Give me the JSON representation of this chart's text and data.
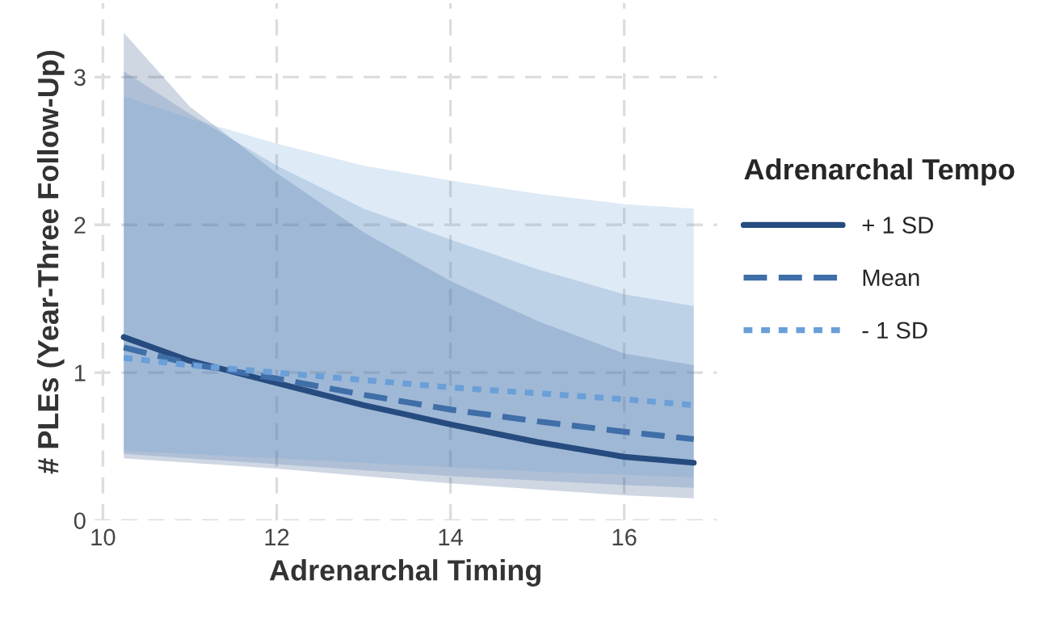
{
  "chart_data": {
    "type": "line",
    "xlabel": "Adrenarchal Timing",
    "ylabel": "# PLEs (Year-Three Follow-Up)",
    "legend_title": "Adrenarchal Tempo",
    "xlim": [
      9.9,
      17.07
    ],
    "ylim": [
      0,
      3.5
    ],
    "xticks": [
      10,
      12,
      14,
      16
    ],
    "yticks": [
      0,
      1,
      2,
      3
    ],
    "grid": true,
    "legend": "right",
    "marker": "none",
    "x": [
      10.24,
      11,
      12,
      13,
      14,
      15,
      16,
      16.8
    ],
    "series": [
      {
        "name": "+ 1 SD",
        "color": "#264b7e",
        "line_style": "solid",
        "values": [
          1.24,
          1.08,
          0.93,
          0.78,
          0.65,
          0.53,
          0.43,
          0.39
        ],
        "lower": [
          0.42,
          0.39,
          0.35,
          0.3,
          0.25,
          0.21,
          0.17,
          0.15
        ],
        "upper": [
          3.3,
          2.8,
          2.35,
          1.95,
          1.62,
          1.35,
          1.13,
          1.05
        ]
      },
      {
        "name": "Mean",
        "color": "#3f6ea8",
        "line_style": "dashed",
        "values": [
          1.17,
          1.06,
          0.96,
          0.85,
          0.75,
          0.67,
          0.6,
          0.55
        ],
        "lower": [
          0.45,
          0.42,
          0.38,
          0.34,
          0.3,
          0.27,
          0.24,
          0.22
        ],
        "upper": [
          3.04,
          2.75,
          2.4,
          2.11,
          1.9,
          1.7,
          1.53,
          1.45
        ]
      },
      {
        "name": "- 1 SD",
        "color": "#6a9fd8",
        "line_style": "dotted",
        "values": [
          1.1,
          1.05,
          1.0,
          0.95,
          0.9,
          0.86,
          0.82,
          0.78
        ],
        "lower": [
          0.47,
          0.45,
          0.42,
          0.39,
          0.36,
          0.33,
          0.31,
          0.29
        ],
        "upper": [
          2.87,
          2.72,
          2.55,
          2.4,
          2.3,
          2.21,
          2.14,
          2.11
        ]
      }
    ]
  }
}
